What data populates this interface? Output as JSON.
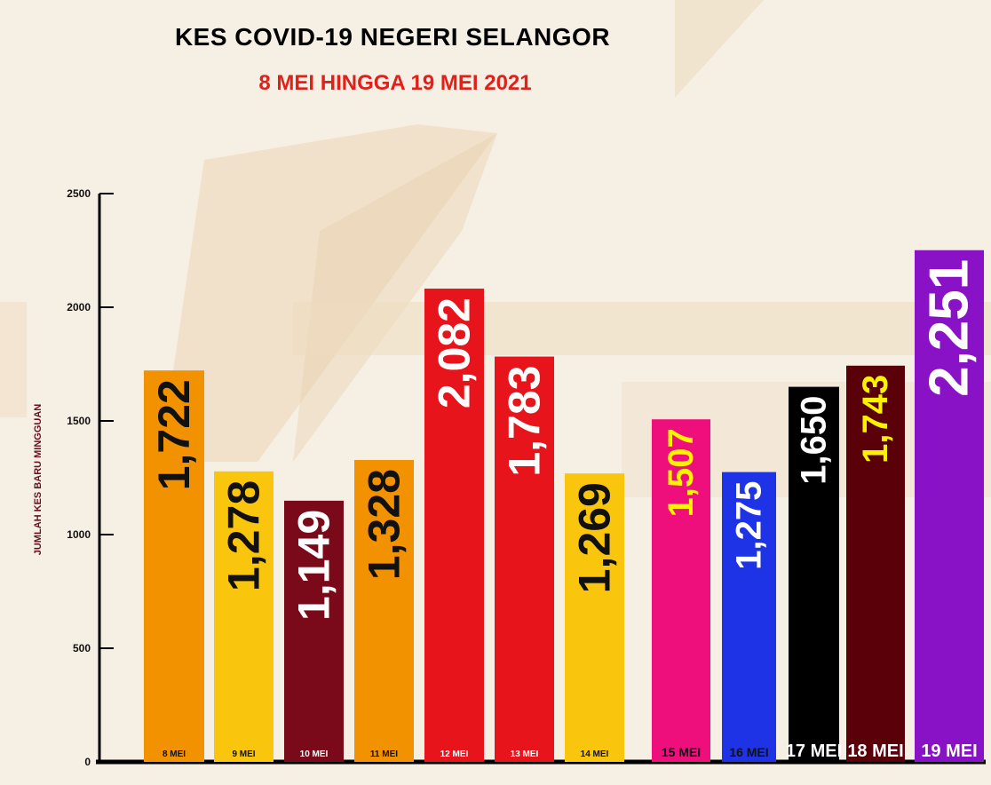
{
  "chart_data": {
    "type": "bar",
    "title": "KES COVID-19 NEGERI SELANGOR",
    "subtitle": "8 MEI HINGGA 19 MEI 2021",
    "ylabel": "JUMLAH KES BARU MINGGUAN",
    "xlabel": "",
    "ylim": [
      0,
      2500
    ],
    "yticks": [
      0,
      500,
      1000,
      1500,
      2000,
      2500
    ],
    "grid": false,
    "categories": [
      "8 MEI",
      "9 MEI",
      "10 MEI",
      "11 MEI",
      "12 MEI",
      "13 MEI",
      "14 MEI",
      "15 MEI",
      "16 MEI",
      "17 MEI",
      "18 MEI",
      "19 MEI"
    ],
    "values": [
      1722,
      1278,
      1149,
      1328,
      2082,
      1783,
      1269,
      1507,
      1275,
      1650,
      1743,
      2251
    ],
    "value_labels": [
      "1,722",
      "1,278",
      "1,149",
      "1,328",
      "2,082",
      "1,783",
      "1,269",
      "1,507",
      "1,275",
      "1,650",
      "1,743",
      "2,251"
    ],
    "colors": [
      "#f39200",
      "#f9c60d",
      "#7a0a1a",
      "#f39200",
      "#e8141b",
      "#e8141b",
      "#f9c60d",
      "#ee0f7c",
      "#1f33e6",
      "#000000",
      "#5a0008",
      "#8a12c6"
    ],
    "label_colors": [
      "#111111",
      "#111111",
      "#ffffff",
      "#111111",
      "#ffffff",
      "#ffffff",
      "#111111",
      "#fff200",
      "#ffffff",
      "#ffffff",
      "#fff200",
      "#ffffff"
    ],
    "category_label_colors": [
      "#111111",
      "#111111",
      "#ffffff",
      "#111111",
      "#ffffff",
      "#ffffff",
      "#111111",
      "#111111",
      "#111111",
      "#ffffff",
      "#ffffff",
      "#ffffff"
    ]
  }
}
